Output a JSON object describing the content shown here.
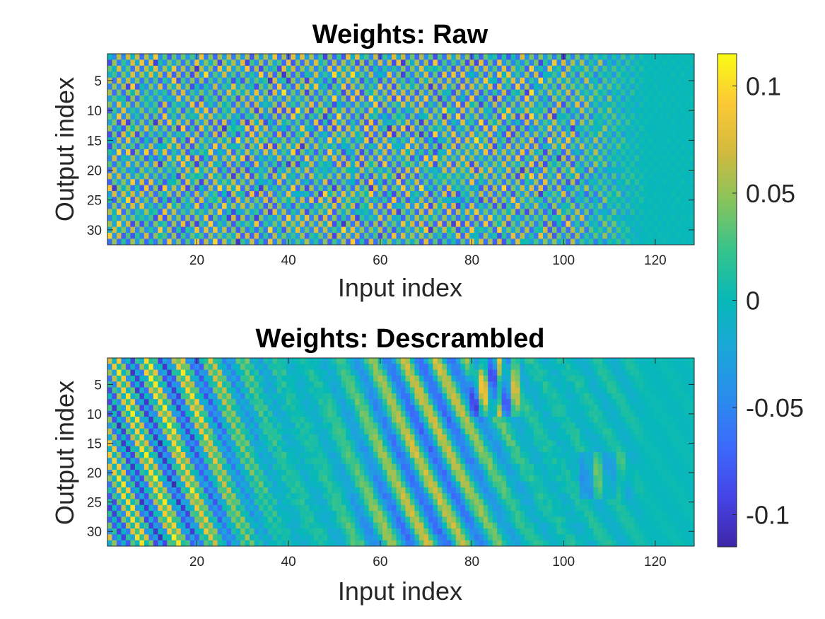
{
  "chart_data": [
    {
      "type": "heatmap",
      "title": "Weights: Raw",
      "xlabel": "Input index",
      "ylabel": "Output index",
      "x": {
        "min": 1,
        "max": 128
      },
      "y": {
        "min": 1,
        "max": 32
      },
      "xlim": [
        0.5,
        128.5
      ],
      "ylim": [
        0.5,
        32.5
      ],
      "xticks": [
        20,
        40,
        60,
        80,
        100,
        120
      ],
      "yticks": [
        5,
        10,
        15,
        20,
        25,
        30
      ],
      "y_direction": "reverse",
      "value_range": [
        -0.115,
        0.115
      ],
      "pattern": "values alternate in sign between neighbouring columns and rows; amplitude about 0.04-0.11 for inputs 1-100, fading to near 0 for inputs 118-128"
    },
    {
      "type": "heatmap",
      "title": "Weights: Descrambled",
      "xlabel": "Input index",
      "ylabel": "Output index",
      "x": {
        "min": 1,
        "max": 128
      },
      "y": {
        "min": 1,
        "max": 32
      },
      "xlim": [
        0.5,
        128.5
      ],
      "ylim": [
        0.5,
        32.5
      ],
      "xticks": [
        20,
        40,
        60,
        80,
        100,
        120
      ],
      "yticks": [
        5,
        10,
        15,
        20,
        25,
        30
      ],
      "y_direction": "reverse",
      "value_range": [
        -0.115,
        0.115
      ],
      "pattern": "checkerboard at low input index, smooth diagonal wave stripes around inputs 40-115; strong values near inputs 80-90 (outputs 1-10) and 105-115 (outputs 18-24); near 0 beyond input 118"
    }
  ],
  "colorbar": {
    "colormap": "parula",
    "limits": [
      -0.115,
      0.115
    ],
    "ticks": [
      -0.1,
      -0.05,
      0,
      0.05,
      0.1
    ],
    "tick_labels": [
      "-0.1",
      "-0.05",
      "0",
      "0.05",
      "0.1"
    ]
  }
}
